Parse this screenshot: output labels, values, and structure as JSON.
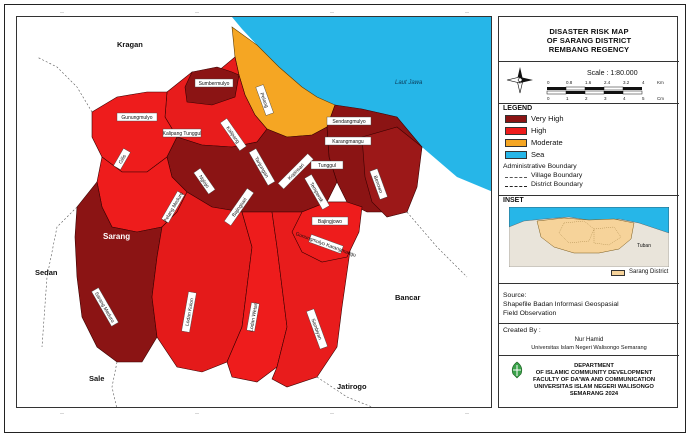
{
  "map": {
    "villages": [
      "Sumbermulyo",
      "Gunungmulyo",
      "Pelang",
      "Kalipang",
      "Tanjungan",
      "Kopinsari",
      "Nglojo",
      "Bajingsari",
      "Tunggul",
      "Benowo",
      "Karangmangu",
      "Sendangmulyo",
      "Temperak",
      "Bajingjowo",
      "Gilis",
      "Sarang Meduro",
      "Lodan Kulon",
      "Lodan Wetan",
      "Sambiyan",
      "Gunungmulyo Karangmangu",
      "Kalipang Tunggul",
      "Pelang Meduro"
    ],
    "regions": [
      "Kragan",
      "Sedan",
      "Sale",
      "Jatirogo",
      "Bancar",
      "Sarang"
    ],
    "sea_label": "Laut Jawa"
  },
  "title": {
    "line1": "DISASTER RISK MAP",
    "line2": "OF SARANG DISTRICT",
    "line3": "REMBANG REGENCY"
  },
  "scale": {
    "text": "Scale : 1:80.000",
    "km_ticks": [
      "0",
      "0.8",
      "1.6",
      "2.4",
      "3.2",
      "4"
    ],
    "km_unit": "Km",
    "cm_ticks": [
      "0",
      "1",
      "2",
      "3",
      "4",
      "5"
    ],
    "cm_unit": "Cm"
  },
  "legend": {
    "heading": "LEGEND",
    "items": [
      {
        "label": "Very High",
        "color": "#8b1414"
      },
      {
        "label": "High",
        "color": "#ee1c1c"
      },
      {
        "label": "Moderate",
        "color": "#f5a623"
      },
      {
        "label": "Sea",
        "color": "#26b6e8"
      }
    ],
    "admin_heading": "Administrative Boundary",
    "village_boundary": "Village Boundary",
    "district_boundary": "District Boundary"
  },
  "inset": {
    "heading": "INSET",
    "region_label": "Tuban",
    "legend_label": "Sarang District"
  },
  "source": {
    "heading": "Source:",
    "line1": "Shapefile Badan Informasi Geospasial",
    "line2": "Field Observation"
  },
  "created": {
    "heading": "Created By :",
    "name": "Nur Hamid",
    "institution": "Universitas Islam Negeri Walisongo Semarang"
  },
  "credit": {
    "line1": "DEPARTMENT",
    "line2": "OF ISLAMIC COMMUNITY DEVELOPMENT",
    "line3": "FACULTY OF DA'WA AND COMMUNICATION",
    "line4": "UNIVERSITAS ISLAM NEGERI WALISONGO",
    "line5": "SEMARANG 2024"
  },
  "colors": {
    "very_high": "#8b1414",
    "high": "#ee1c1c",
    "moderate": "#f5a623",
    "sea": "#26b6e8",
    "outside": "#ffffff"
  }
}
